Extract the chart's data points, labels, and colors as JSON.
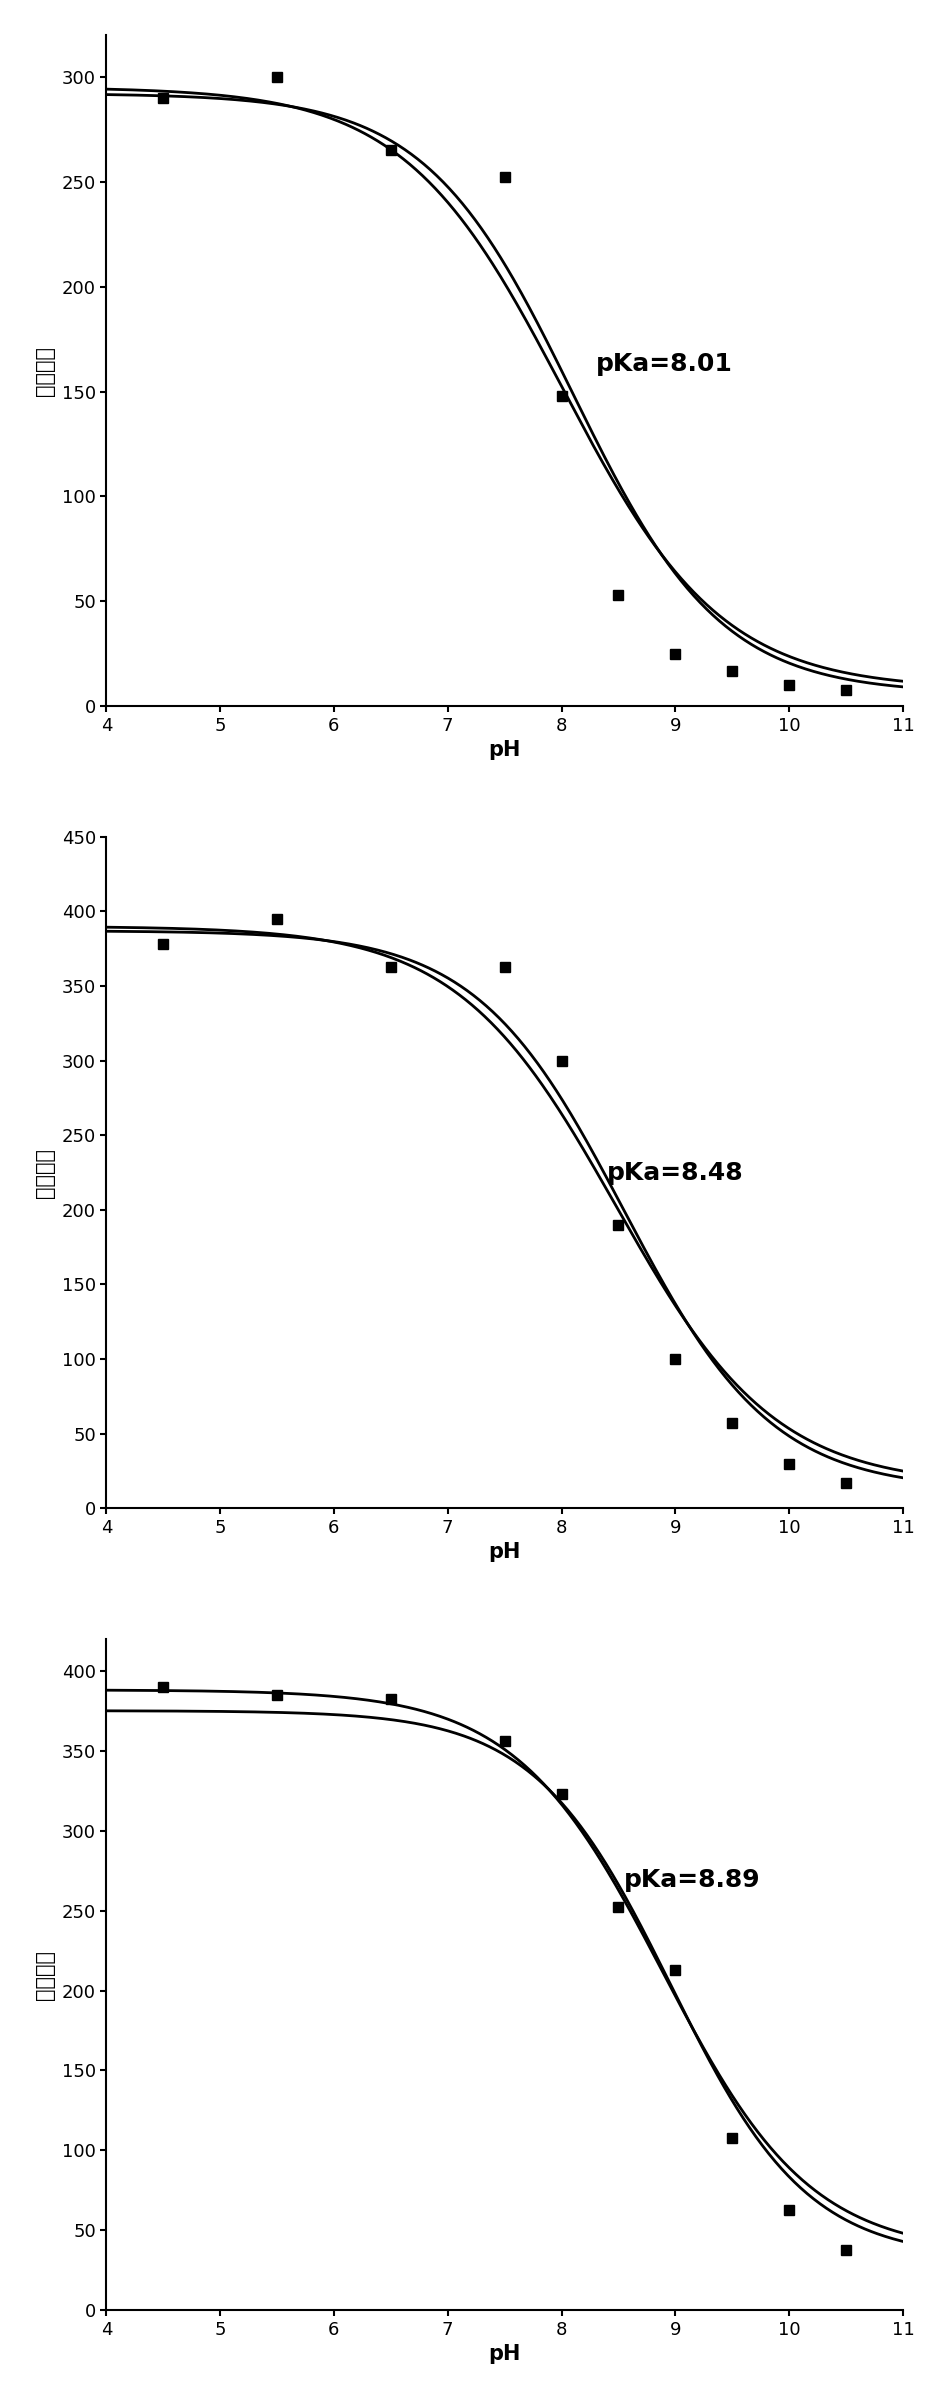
{
  "charts": [
    {
      "pka": "pKa=8.01",
      "ylim": [
        0,
        320
      ],
      "yticks": [
        0,
        50,
        100,
        150,
        200,
        250,
        300
      ],
      "data_points_x": [
        4.5,
        5.5,
        6.5,
        7.5,
        8.0,
        8.5,
        9.0,
        9.5,
        10.0,
        10.5
      ],
      "data_points_y": [
        290,
        300,
        265,
        252,
        148,
        53,
        25,
        17,
        10,
        8
      ],
      "curve1_params": [
        295,
        8.01,
        0.7,
        8
      ],
      "curve2_params": [
        292,
        8.1,
        0.65,
        6
      ],
      "pka_x": 8.3,
      "pka_y": 160,
      "annotation_fontsize": 18
    },
    {
      "pka": "pKa=8.48",
      "ylim": [
        0,
        450
      ],
      "yticks": [
        0,
        50,
        100,
        150,
        200,
        250,
        300,
        350,
        400,
        450
      ],
      "data_points_x": [
        4.5,
        5.5,
        6.5,
        7.5,
        8.0,
        8.5,
        9.0,
        9.5,
        10.0,
        10.5
      ],
      "data_points_y": [
        378,
        395,
        363,
        363,
        300,
        190,
        100,
        57,
        30,
        17
      ],
      "curve1_params": [
        390,
        8.48,
        0.7,
        15
      ],
      "curve2_params": [
        387,
        8.55,
        0.65,
        12
      ],
      "pka_x": 8.4,
      "pka_y": 220,
      "annotation_fontsize": 18
    },
    {
      "pka": "pKa=8.89",
      "ylim": [
        0,
        420
      ],
      "yticks": [
        0,
        50,
        100,
        150,
        200,
        250,
        300,
        350,
        400
      ],
      "data_points_x": [
        4.5,
        5.5,
        6.5,
        7.5,
        8.0,
        8.5,
        9.0,
        9.5,
        10.0,
        10.5
      ],
      "data_points_y": [
        390,
        385,
        382,
        356,
        323,
        252,
        213,
        108,
        63,
        38
      ],
      "curve1_params": [
        388,
        8.89,
        0.65,
        35
      ],
      "curve2_params": [
        375,
        8.96,
        0.6,
        32
      ],
      "pka_x": 8.55,
      "pka_y": 265,
      "annotation_fontsize": 18
    }
  ],
  "xlabel": "pH",
  "ylabel": "荺光强度",
  "xlim": [
    4,
    11
  ],
  "xticks": [
    4,
    5,
    6,
    7,
    8,
    9,
    10,
    11
  ],
  "xticklabels": [
    "4",
    "5",
    "6",
    "7",
    "8",
    "9",
    "10",
    "11"
  ],
  "line_color": "#000000",
  "marker": "s",
  "markersize": 7,
  "linewidth": 2.0,
  "xlabel_fontsize": 15,
  "ylabel_fontsize": 15,
  "tick_fontsize": 13,
  "background_color": "#ffffff"
}
